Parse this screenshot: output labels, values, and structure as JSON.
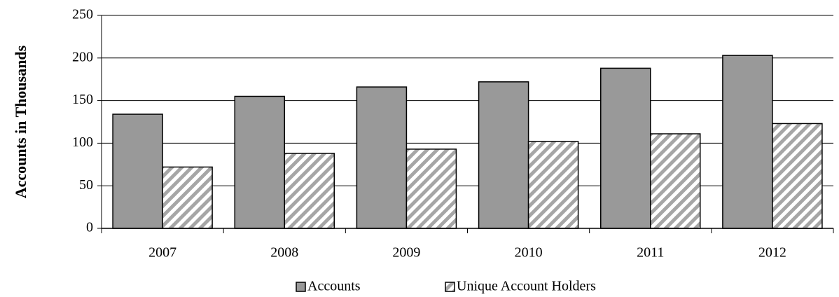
{
  "chart_data": {
    "type": "bar",
    "y_label": "Accounts in Thousands",
    "categories": [
      "2007",
      "2008",
      "2009",
      "2010",
      "2011",
      "2012"
    ],
    "series": [
      {
        "name": "Accounts",
        "color": "#999999",
        "values": [
          134,
          155,
          166,
          172,
          188,
          203
        ]
      },
      {
        "name": "Unique Account Holders",
        "color": "#a6a6a6",
        "hatch": true,
        "values": [
          72,
          88,
          93,
          102,
          111,
          123
        ]
      }
    ],
    "ylim": [
      0,
      250
    ],
    "yticks": [
      0,
      50,
      100,
      150,
      200,
      250
    ],
    "grid": true
  }
}
